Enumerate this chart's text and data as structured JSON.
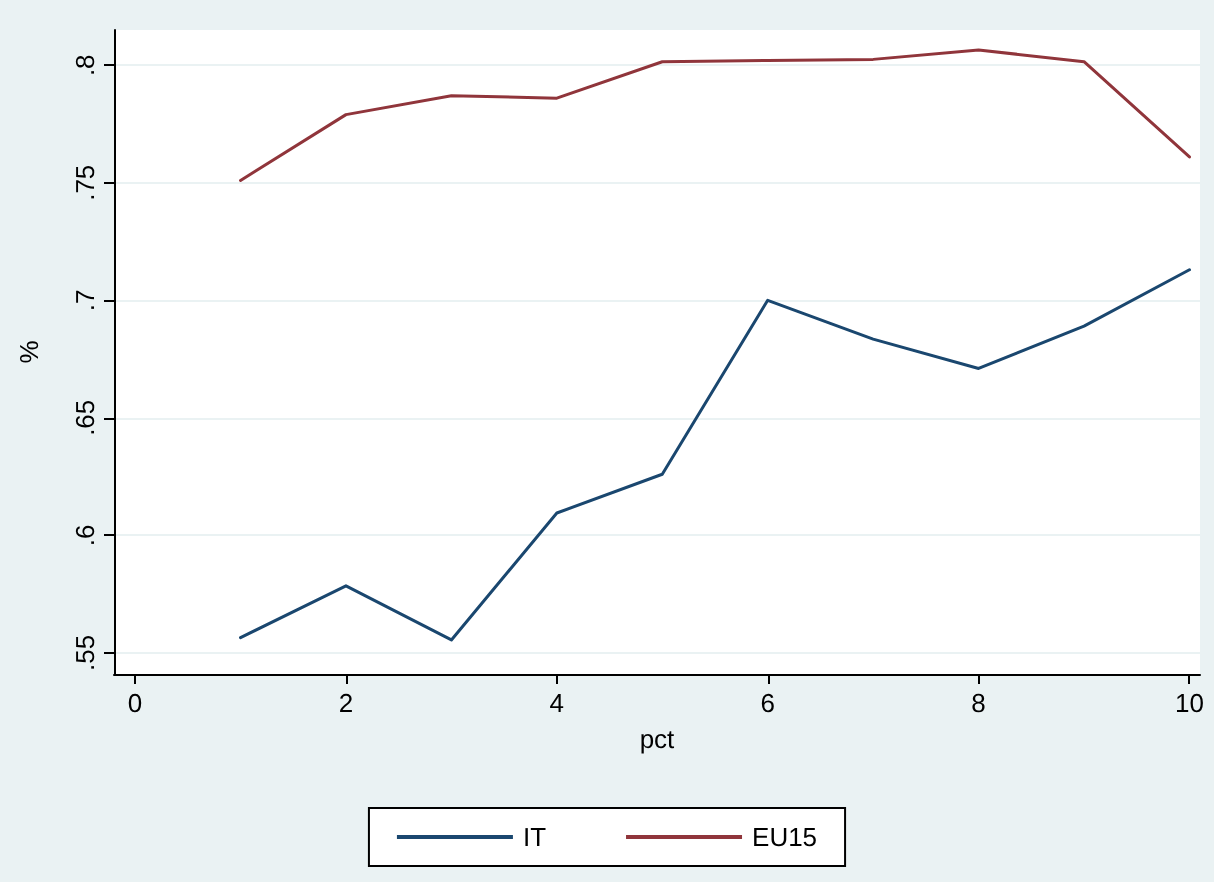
{
  "chart_data": {
    "type": "line",
    "xlabel": "pct",
    "ylabel": "%",
    "x": [
      1,
      2,
      3,
      4,
      5,
      6,
      7,
      8,
      9,
      10
    ],
    "series": [
      {
        "name": "IT",
        "color": "#1a476f",
        "values": [
          0.5565,
          0.5785,
          0.5555,
          0.6095,
          0.626,
          0.7,
          0.6835,
          0.671,
          0.689,
          0.713
        ]
      },
      {
        "name": "EU15",
        "color": "#90353b",
        "values": [
          0.751,
          0.779,
          0.787,
          0.786,
          0.8015,
          0.802,
          0.8025,
          0.8065,
          0.8015,
          0.761
        ]
      }
    ],
    "xlim": [
      -0.2,
      10.1
    ],
    "xticks": [
      0,
      2,
      4,
      6,
      8,
      10
    ],
    "ylim": [
      0.541,
      0.815
    ],
    "yticks": [
      {
        "value": 0.55,
        "label": ".55"
      },
      {
        "value": 0.6,
        "label": ".6"
      },
      {
        "value": 0.65,
        "label": ".65"
      },
      {
        "value": 0.7,
        "label": ".7"
      },
      {
        "value": 0.75,
        "label": ".75"
      },
      {
        "value": 0.8,
        "label": ".8"
      }
    ],
    "grid": "y",
    "legend": "bottom",
    "marker": "none",
    "line_style": "solid"
  }
}
